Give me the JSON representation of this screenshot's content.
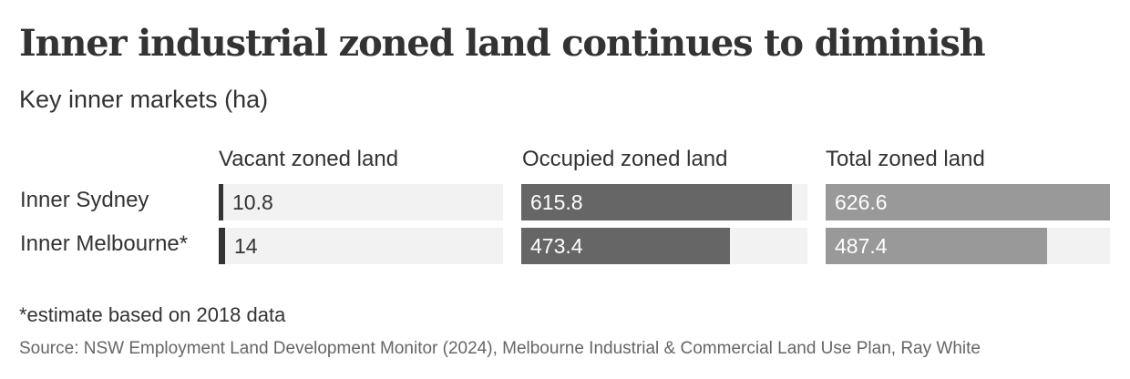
{
  "colors": {
    "vacant": "#333333",
    "occupied": "#666666",
    "total": "#999999",
    "track": "#f2f2f2",
    "dark_label": "#333333",
    "light_label": "#ffffff"
  },
  "chart_data": {
    "type": "bar",
    "title": "Inner industrial zoned land continues to diminish",
    "subtitle": "Key inner markets (ha)",
    "categories": [
      "Inner Sydney",
      "Inner Melbourne*"
    ],
    "series": [
      {
        "key": "vacant",
        "name": "Vacant zoned land",
        "values": [
          10.8,
          14
        ],
        "labels": [
          "10.8",
          "14"
        ],
        "max": 650
      },
      {
        "key": "occupied",
        "name": "Occupied zoned land",
        "values": [
          615.8,
          473.4
        ],
        "labels": [
          "615.8",
          "473.4"
        ],
        "max": 650
      },
      {
        "key": "total",
        "name": "Total zoned land",
        "values": [
          626.6,
          487.4
        ],
        "labels": [
          "626.6",
          "487.4"
        ],
        "max": 626.6
      }
    ],
    "footnote": "*estimate based on 2018 data",
    "source": "Source: NSW Employment Land Development Monitor (2024), Melbourne Industrial & Commercial Land Use Plan, Ray White"
  }
}
